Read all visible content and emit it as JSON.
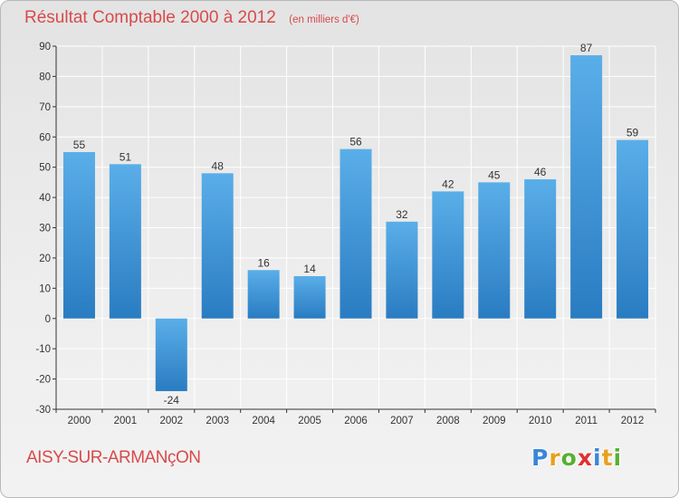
{
  "header": {
    "title": "Résultat Comptable 2000 à 2012",
    "subtitle": "(en milliers d'€)"
  },
  "footer": {
    "commune": "AISY-SUR-ARMANçON",
    "logo_letters": [
      "P",
      "r",
      "o",
      "x",
      "i",
      "t",
      "i"
    ],
    "logo_colors": [
      "#3a86d8",
      "#e8a020",
      "#58b030",
      "#e03030",
      "#3a86d8",
      "#e8a020",
      "#58b030"
    ]
  },
  "colors": {
    "bar_top": "#5aaee8",
    "bar_bottom": "#2a7cc2",
    "title": "#d94a4a",
    "grid": "#ffffff",
    "axis": "#333333"
  },
  "chart_data": {
    "type": "bar",
    "title": "Résultat Comptable 2000 à 2012",
    "subtitle": "(en milliers d'€)",
    "categories": [
      "2000",
      "2001",
      "2002",
      "2003",
      "2004",
      "2005",
      "2006",
      "2007",
      "2008",
      "2009",
      "2010",
      "2011",
      "2012"
    ],
    "values": [
      55,
      51,
      -24,
      48,
      16,
      14,
      56,
      32,
      42,
      45,
      46,
      87,
      59
    ],
    "ylim": [
      -30,
      90
    ],
    "yticks": [
      -30,
      -20,
      -10,
      0,
      10,
      20,
      30,
      40,
      50,
      60,
      70,
      80,
      90
    ],
    "xlabel": "",
    "ylabel": "",
    "grid": true,
    "data_labels": true
  }
}
